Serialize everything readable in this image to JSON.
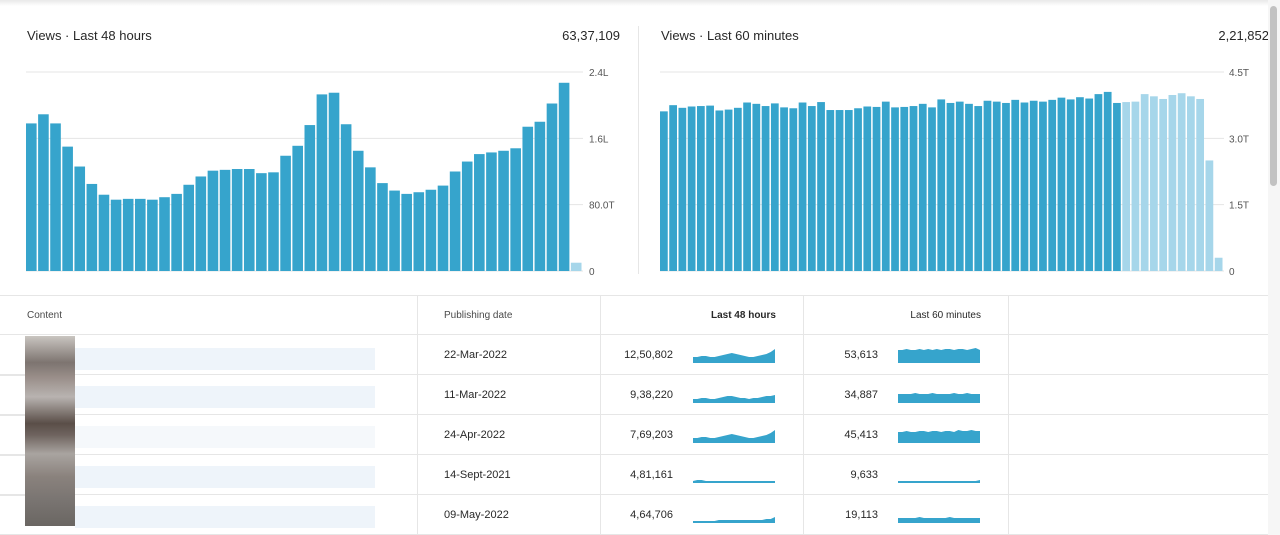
{
  "panels": {
    "last48": {
      "title": "Views · Last 48 hours",
      "total": "63,37,109"
    },
    "last60": {
      "title": "Views · Last 60 minutes",
      "total": "2,21,852"
    }
  },
  "chart_data": [
    {
      "type": "bar",
      "title": "Views · Last 48 hours",
      "total": "63,37,109",
      "yticks": [
        "2.4L",
        "1.6L",
        "80.0T",
        "0"
      ],
      "ylim": [
        0,
        240000
      ],
      "grid": true,
      "series": [
        {
          "values": [
            178000,
            189000,
            178000,
            150000,
            126000,
            105000,
            92000,
            86000,
            87000,
            87000,
            86000,
            89000,
            93000,
            104000,
            114000,
            121000,
            122000,
            123000,
            123000,
            118000,
            119000,
            139000,
            151000,
            176000,
            213000,
            215000,
            177000,
            145000,
            125000,
            106000,
            97000,
            93000,
            95000,
            98000,
            103000,
            120000,
            132000,
            141000,
            143000,
            145000,
            148000,
            174000,
            180000,
            202000,
            227000,
            10000
          ],
          "highlight": [
            false,
            false,
            false,
            false,
            false,
            false,
            false,
            false,
            false,
            false,
            false,
            false,
            false,
            false,
            false,
            false,
            false,
            false,
            false,
            false,
            false,
            false,
            false,
            false,
            false,
            false,
            false,
            false,
            false,
            false,
            false,
            false,
            false,
            false,
            false,
            false,
            false,
            false,
            false,
            false,
            false,
            false,
            false,
            false,
            false,
            true
          ]
        }
      ]
    },
    {
      "type": "bar",
      "title": "Views · Last 60 minutes",
      "total": "2,21,852",
      "yticks": [
        "4.5T",
        "3.0T",
        "1.5T",
        "0"
      ],
      "ylim": [
        0,
        4500
      ],
      "grid": true,
      "series": [
        {
          "values": [
            3610,
            3750,
            3690,
            3720,
            3730,
            3740,
            3630,
            3650,
            3690,
            3810,
            3780,
            3730,
            3790,
            3700,
            3680,
            3810,
            3730,
            3820,
            3640,
            3640,
            3640,
            3680,
            3720,
            3710,
            3830,
            3700,
            3710,
            3730,
            3780,
            3700,
            3880,
            3800,
            3830,
            3780,
            3730,
            3850,
            3830,
            3800,
            3870,
            3810,
            3850,
            3830,
            3870,
            3920,
            3880,
            3930,
            3900,
            4000,
            4050,
            3800,
            3820,
            3830,
            4000,
            3950,
            3890,
            3980,
            4020,
            3950,
            3890,
            2500,
            300
          ],
          "highlight": [
            false,
            false,
            false,
            false,
            false,
            false,
            false,
            false,
            false,
            false,
            false,
            false,
            false,
            false,
            false,
            false,
            false,
            false,
            false,
            false,
            false,
            false,
            false,
            false,
            false,
            false,
            false,
            false,
            false,
            false,
            false,
            false,
            false,
            false,
            false,
            false,
            false,
            false,
            false,
            false,
            false,
            false,
            false,
            false,
            false,
            false,
            false,
            false,
            false,
            false,
            true,
            true,
            true,
            true,
            true,
            true,
            true,
            true,
            true,
            true,
            true
          ]
        }
      ]
    }
  ],
  "table": {
    "headers": {
      "content": "Content",
      "publishing_date": "Publishing date",
      "last48": "Last 48 hours",
      "last60": "Last 60 minutes"
    },
    "rows": [
      {
        "date": "22-Mar-2022",
        "views48": "12,50,802",
        "views60": "53,613",
        "spark48": [
          6,
          6,
          7,
          7,
          6,
          6,
          7,
          8,
          9,
          10,
          9,
          8,
          7,
          6,
          6,
          7,
          8,
          9,
          11,
          14
        ],
        "spark60": [
          13,
          13,
          14,
          13,
          13,
          14,
          13,
          14,
          13,
          14,
          13,
          14,
          14,
          13,
          14,
          14,
          13,
          14,
          15,
          13
        ]
      },
      {
        "date": "11-Mar-2022",
        "views48": "9,38,220",
        "views60": "34,887",
        "spark48": [
          4,
          4,
          5,
          5,
          4,
          4,
          5,
          6,
          7,
          7,
          6,
          5,
          5,
          4,
          5,
          5,
          6,
          7,
          7,
          8
        ],
        "spark60": [
          9,
          9,
          9,
          9,
          10,
          9,
          9,
          9,
          10,
          9,
          9,
          9,
          9,
          10,
          9,
          9,
          10,
          9,
          9,
          9
        ]
      },
      {
        "date": "24-Apr-2022",
        "views48": "7,69,203",
        "views60": "45,413",
        "spark48": [
          5,
          5,
          6,
          6,
          5,
          5,
          6,
          7,
          8,
          9,
          8,
          7,
          6,
          5,
          5,
          6,
          7,
          8,
          10,
          13
        ],
        "spark60": [
          11,
          11,
          12,
          11,
          11,
          12,
          12,
          11,
          12,
          12,
          11,
          12,
          12,
          11,
          13,
          12,
          12,
          13,
          12,
          12
        ]
      },
      {
        "date": "14-Sept-2021",
        "views48": "4,81,161",
        "views60": "9,633",
        "spark48": [
          2,
          3,
          3,
          2,
          2,
          2,
          2,
          2,
          2,
          2,
          2,
          2,
          2,
          2,
          2,
          2,
          2,
          2,
          2,
          2
        ],
        "spark60": [
          2,
          2,
          2,
          2,
          2,
          2,
          2,
          2,
          2,
          2,
          2,
          2,
          2,
          2,
          2,
          2,
          2,
          2,
          2,
          3
        ]
      },
      {
        "date": "09-May-2022",
        "views48": "4,64,706",
        "views60": "19,113",
        "spark48": [
          2,
          2,
          2,
          2,
          2,
          2,
          3,
          3,
          3,
          3,
          3,
          3,
          3,
          3,
          3,
          3,
          3,
          4,
          4,
          6
        ],
        "spark60": [
          5,
          5,
          5,
          5,
          5,
          6,
          5,
          5,
          5,
          5,
          5,
          5,
          6,
          5,
          5,
          5,
          5,
          5,
          5,
          5
        ]
      }
    ]
  },
  "colors": {
    "bar": "#36a4cc",
    "bar_highlight": "#a6d6ea",
    "grid": "#e4e4e4",
    "spark": "#36a4cc"
  }
}
